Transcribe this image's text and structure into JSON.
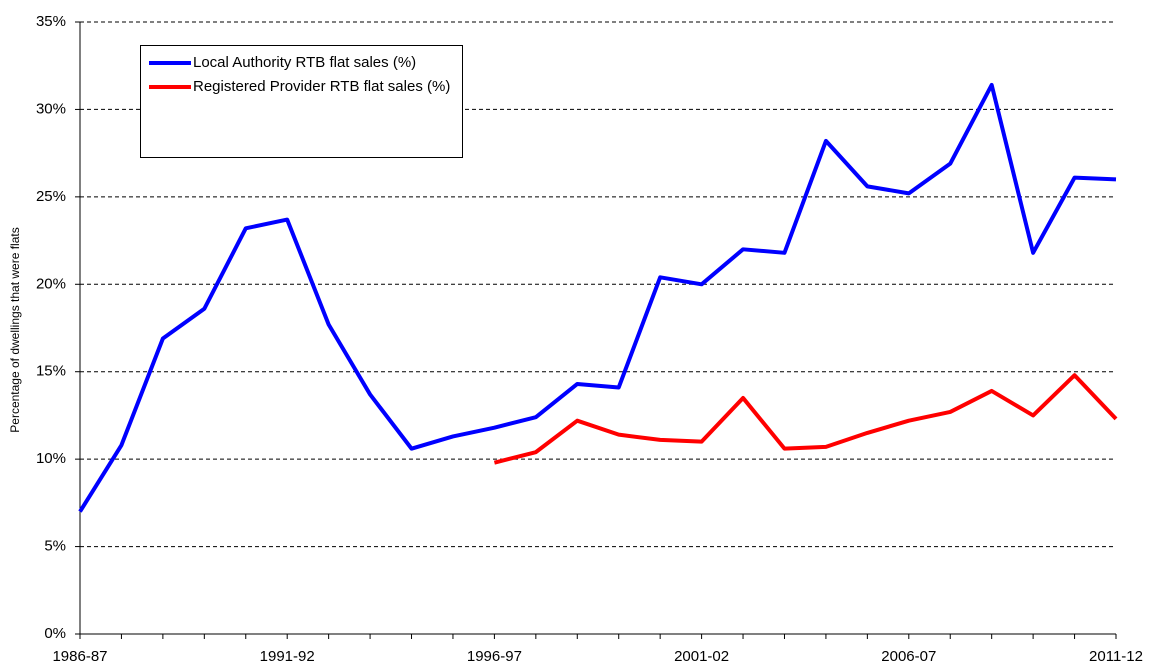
{
  "chart_data": {
    "type": "line",
    "y_label": "Percentage of dwellings that were flats",
    "categories": [
      "1986-87",
      null,
      null,
      null,
      null,
      "1991-92",
      null,
      null,
      null,
      null,
      "1996-97",
      null,
      null,
      null,
      null,
      "2001-02",
      null,
      null,
      null,
      null,
      "2006-07",
      null,
      null,
      null,
      null,
      "2011-12"
    ],
    "series": [
      {
        "name": "Local Authority RTB flat sales (%)",
        "color": "#0000ff",
        "values": [
          7.0,
          10.8,
          16.9,
          18.6,
          23.2,
          23.7,
          17.7,
          13.7,
          10.6,
          11.3,
          11.8,
          12.4,
          14.3,
          14.1,
          20.4,
          20.0,
          22.0,
          21.8,
          28.2,
          25.6,
          25.2,
          26.9,
          31.4,
          21.8,
          26.1,
          26.0
        ]
      },
      {
        "name": "Registered Provider RTB flat sales (%)",
        "color": "#ff0000",
        "values": [
          null,
          null,
          null,
          null,
          null,
          null,
          null,
          null,
          null,
          null,
          9.8,
          10.4,
          12.2,
          11.4,
          11.1,
          11.0,
          13.5,
          10.6,
          10.7,
          11.5,
          12.2,
          12.7,
          13.9,
          12.5,
          14.8,
          12.3
        ]
      }
    ],
    "ylim": [
      0,
      35
    ],
    "yticks": [
      {
        "value": 0,
        "label": "0%"
      },
      {
        "value": 5,
        "label": "5%"
      },
      {
        "value": 10,
        "label": "10%"
      },
      {
        "value": 15,
        "label": "15%"
      },
      {
        "value": 20,
        "label": "20%"
      },
      {
        "value": 25,
        "label": "25%"
      },
      {
        "value": 30,
        "label": "30%"
      },
      {
        "value": 35,
        "label": "35%"
      }
    ],
    "grid": true
  }
}
